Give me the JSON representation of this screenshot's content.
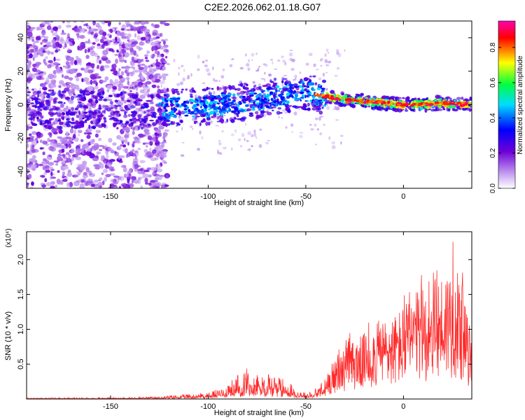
{
  "title": "C2E2.2026.062.01.18.G07",
  "chart_data": [
    {
      "type": "heatmap",
      "name": "spectrogram",
      "xlabel": "Height of straight line (km)",
      "ylabel": "Frequency (Hz)",
      "xlim": [
        -193,
        35
      ],
      "ylim": [
        -50,
        50
      ],
      "x_ticks": [
        -150,
        -100,
        -50,
        0
      ],
      "x_tick_labels": [
        "-150",
        "-100",
        "-50",
        "0"
      ],
      "y_ticks": [
        -40,
        -20,
        0,
        20,
        40
      ],
      "y_tick_labels": [
        "-40",
        "-20",
        "0",
        "20",
        "40"
      ],
      "trend": {
        "x": [
          -193,
          -160,
          -130,
          -120,
          -100,
          -80,
          -60,
          -50,
          -45,
          -30,
          -10,
          0,
          10,
          20,
          35
        ],
        "freq": [
          -3,
          -3,
          -4,
          -2,
          -1,
          2,
          6,
          8,
          6,
          3,
          1,
          0,
          0,
          1,
          0
        ]
      },
      "colorbar": {
        "label": "Normalized spectral amplitude",
        "range": [
          0.0,
          0.95
        ],
        "ticks": [
          0.0,
          0.2,
          0.4,
          0.6,
          0.8
        ],
        "tick_labels": [
          "0.0",
          "0.2",
          "0.4",
          "0.6",
          "0.8"
        ],
        "colors": [
          "#ffffff",
          "#9400d3",
          "#0000ff",
          "#00ffff",
          "#00ff00",
          "#ffff00",
          "#ff0000",
          "#ff00ff"
        ]
      }
    },
    {
      "type": "line",
      "name": "snr",
      "xlabel": "Height of straight line (km)",
      "ylabel": "SNR (10 * v/v)",
      "scale_label": "(x10⁴)",
      "xlim": [
        -193,
        35
      ],
      "ylim": [
        0,
        2.4
      ],
      "x_ticks": [
        -150,
        -100,
        -50,
        0
      ],
      "x_tick_labels": [
        "-150",
        "-100",
        "-50",
        "0"
      ],
      "y_ticks": [
        0.5,
        1.0,
        1.5,
        2.0
      ],
      "y_tick_labels": [
        "0.5",
        "1.0",
        "1.5",
        "2.0"
      ],
      "series": [
        {
          "name": "SNR",
          "color": "#ff2a2a",
          "envelope_x": [
            -193,
            -150,
            -130,
            -120,
            -110,
            -100,
            -95,
            -90,
            -85,
            -80,
            -75,
            -70,
            -65,
            -60,
            -55,
            -50,
            -45,
            -40,
            -35,
            -30,
            -25,
            -20,
            -15,
            -10,
            -5,
            0,
            5,
            10,
            15,
            20,
            25,
            30,
            35
          ],
          "envelope_y": [
            0.02,
            0.02,
            0.03,
            0.05,
            0.07,
            0.1,
            0.15,
            0.22,
            0.35,
            0.45,
            0.42,
            0.4,
            0.38,
            0.3,
            0.15,
            0.1,
            0.15,
            0.3,
            0.55,
            0.75,
            0.85,
            0.95,
            1.05,
            1.15,
            1.2,
            1.35,
            1.5,
            1.6,
            1.7,
            1.8,
            2.0,
            1.6,
            0.9
          ]
        }
      ]
    }
  ]
}
